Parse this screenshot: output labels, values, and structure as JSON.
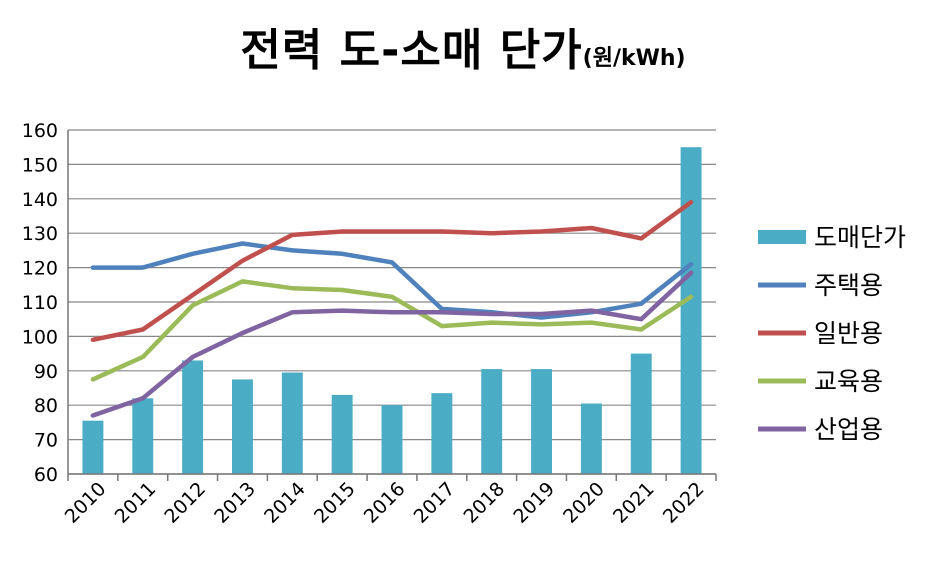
{
  "chart_data": {
    "type": "bar",
    "title": "전력 도-소매 단가",
    "title_unit": "(원/kWh)",
    "categories": [
      "2010",
      "2011",
      "2012",
      "2013",
      "2014",
      "2015",
      "2016",
      "2017",
      "2018",
      "2019",
      "2020",
      "2021",
      "2022"
    ],
    "ylim": [
      60,
      160
    ],
    "yticks": [
      60,
      70,
      80,
      90,
      100,
      110,
      120,
      130,
      140,
      150,
      160
    ],
    "grid": true,
    "legend_position": "right",
    "series": [
      {
        "name": "도매단가",
        "kind": "bar",
        "color": "#4BACC6",
        "values": [
          75.5,
          82,
          93,
          87.5,
          89.5,
          83,
          80,
          83.5,
          90.5,
          90.5,
          80.5,
          95,
          155
        ]
      },
      {
        "name": "주택용",
        "kind": "line",
        "color": "#4F81BD",
        "values": [
          120,
          120,
          124,
          127,
          125,
          124,
          121.5,
          108,
          107,
          105.5,
          107,
          109.5,
          121
        ]
      },
      {
        "name": "일반용",
        "kind": "line",
        "color": "#C0504D",
        "values": [
          99,
          102,
          112,
          122,
          129.5,
          130.5,
          130.5,
          130.5,
          130,
          130.5,
          131.5,
          128.5,
          139
        ]
      },
      {
        "name": "교육용",
        "kind": "line",
        "color": "#9BBB59",
        "values": [
          87.5,
          94,
          109,
          116,
          114,
          113.5,
          111.5,
          103,
          104,
          103.5,
          104,
          102,
          111.5
        ]
      },
      {
        "name": "산업용",
        "kind": "line",
        "color": "#8064A2",
        "values": [
          77,
          82,
          94,
          101,
          107,
          107.5,
          107,
          107,
          106.5,
          106.5,
          107.5,
          105,
          118.5
        ]
      }
    ]
  }
}
